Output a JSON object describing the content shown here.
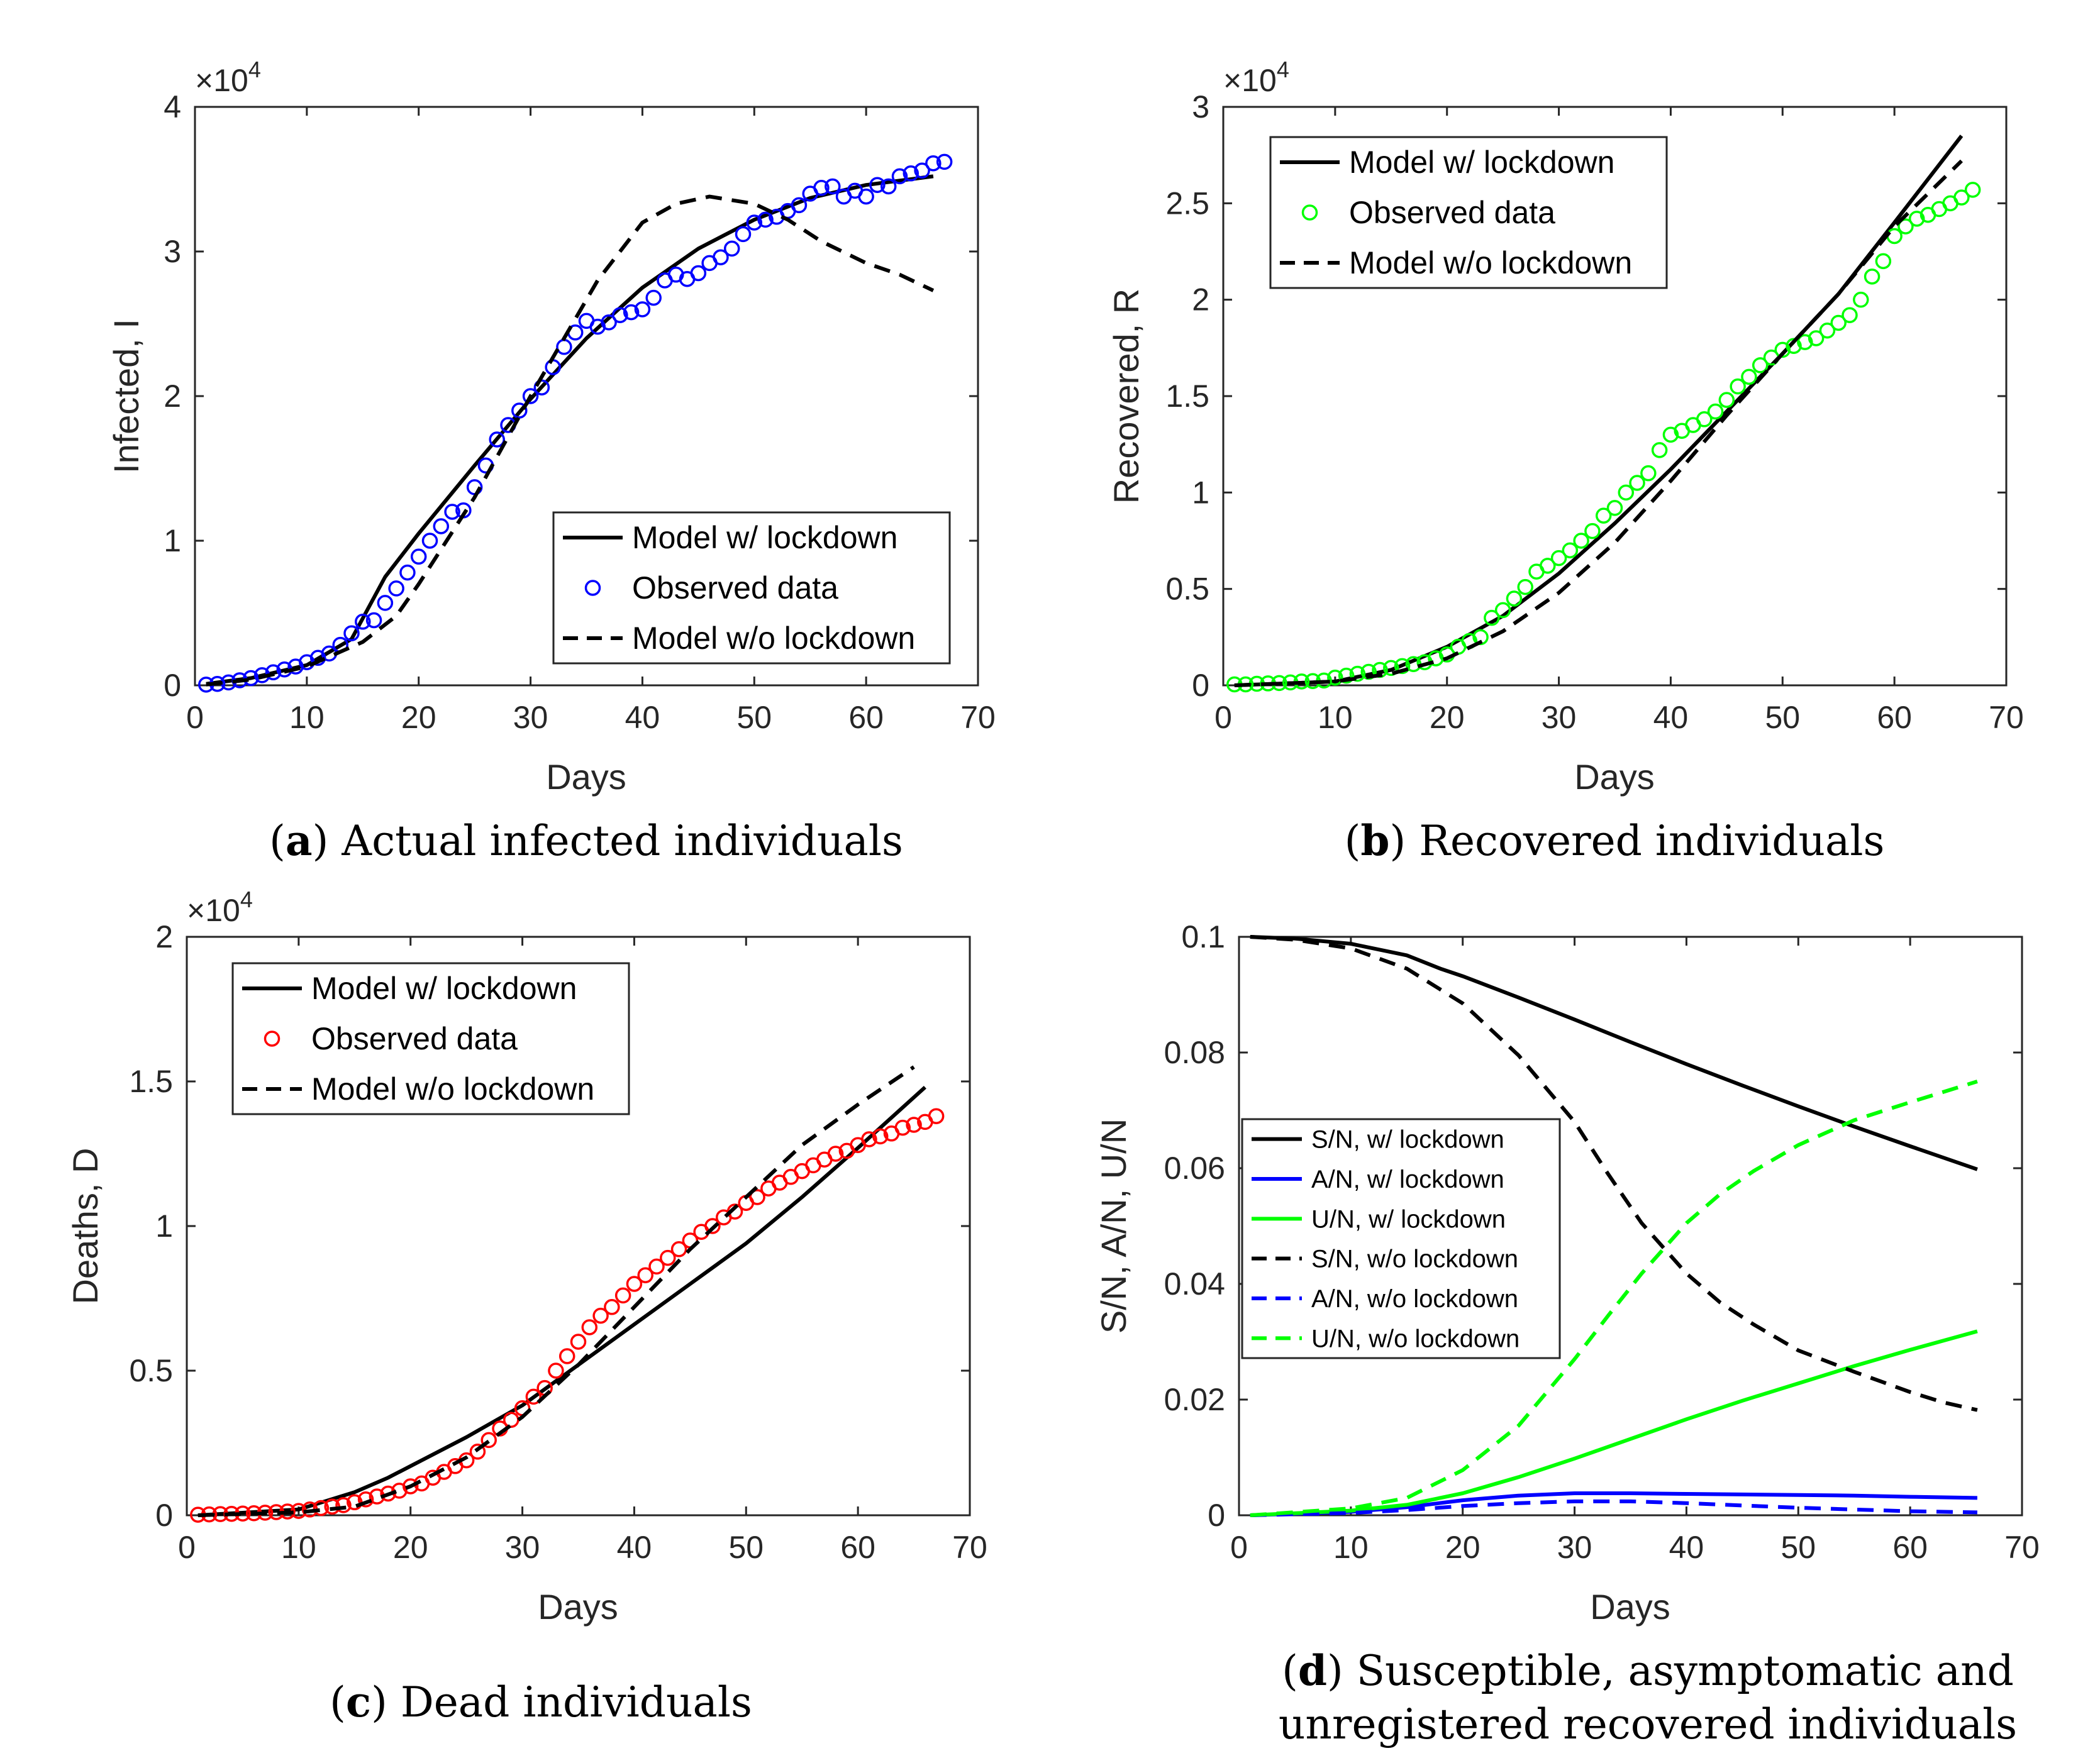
{
  "figure": {
    "panels": [
      {
        "id": "a",
        "caption_letter": "a",
        "caption_text": "Actual infected individuals",
        "exponent_base": "×10",
        "exponent_power": "4"
      },
      {
        "id": "b",
        "caption_letter": "b",
        "caption_text": "Recovered individuals",
        "exponent_base": "×10",
        "exponent_power": "4"
      },
      {
        "id": "c",
        "caption_letter": "c",
        "caption_text": "Dead individuals",
        "exponent_base": "×10",
        "exponent_power": "4"
      },
      {
        "id": "d",
        "caption_letter": "d",
        "caption_text": "Susceptible, asymptomatic and",
        "caption_text_line2": "unregistered recovered individuals",
        "exponent_base": "",
        "exponent_power": ""
      }
    ]
  },
  "colors": {
    "black": "#000000",
    "blue": "#0000ff",
    "green": "#00ff00",
    "red": "#ff0000",
    "axis": "#262626"
  },
  "chart_data": [
    {
      "type": "line",
      "panel": "a",
      "xlabel": "Days",
      "ylabel": "Infected, I",
      "xlim": [
        0,
        70
      ],
      "ylim": [
        0,
        4
      ],
      "xticks": [
        0,
        10,
        20,
        30,
        40,
        50,
        60,
        70
      ],
      "yticks": [
        0,
        1,
        2,
        3,
        4
      ],
      "ytick_labels": [
        "0",
        "1",
        "2",
        "3",
        "4"
      ],
      "y_scale_note": "×10^4",
      "legend_position": "bottom-right",
      "series": [
        {
          "name": "Model w/ lockdown",
          "style": "solid",
          "color": "black",
          "x": [
            1,
            5,
            10,
            14,
            17,
            20,
            25,
            30,
            35,
            40,
            45,
            50,
            55,
            60,
            66
          ],
          "y": [
            0.01,
            0.05,
            0.14,
            0.32,
            0.75,
            1.05,
            1.52,
            1.98,
            2.4,
            2.75,
            3.02,
            3.22,
            3.37,
            3.46,
            3.52
          ]
        },
        {
          "name": "Observed data",
          "style": "marker",
          "color": "blue",
          "x": [
            1,
            2,
            3,
            4,
            5,
            6,
            7,
            8,
            9,
            10,
            11,
            12,
            13,
            14,
            15,
            16,
            17,
            18,
            19,
            20,
            21,
            22,
            23,
            24,
            25,
            26,
            27,
            28,
            29,
            30,
            31,
            32,
            33,
            34,
            35,
            36,
            37,
            38,
            39,
            40,
            41,
            42,
            43,
            44,
            45,
            46,
            47,
            48,
            49,
            50,
            51,
            52,
            53,
            54,
            55,
            56,
            57,
            58,
            59,
            60,
            61,
            62,
            63,
            64,
            65,
            66,
            67
          ],
          "y": [
            0.005,
            0.01,
            0.02,
            0.035,
            0.05,
            0.07,
            0.09,
            0.11,
            0.13,
            0.16,
            0.19,
            0.22,
            0.28,
            0.36,
            0.44,
            0.45,
            0.57,
            0.67,
            0.78,
            0.89,
            1.0,
            1.1,
            1.2,
            1.21,
            1.37,
            1.52,
            1.7,
            1.8,
            1.9,
            2.0,
            2.06,
            2.2,
            2.34,
            2.44,
            2.52,
            2.48,
            2.51,
            2.56,
            2.58,
            2.6,
            2.68,
            2.8,
            2.84,
            2.81,
            2.85,
            2.92,
            2.96,
            3.02,
            3.12,
            3.2,
            3.22,
            3.24,
            3.28,
            3.32,
            3.4,
            3.44,
            3.45,
            3.38,
            3.42,
            3.38,
            3.46,
            3.45,
            3.52,
            3.54,
            3.56,
            3.61,
            3.62
          ]
        },
        {
          "name": "Model w/o lockdown",
          "style": "dashed",
          "color": "black",
          "x": [
            1,
            5,
            10,
            15,
            18,
            20,
            25,
            30,
            33,
            36,
            40,
            43,
            46,
            50,
            53,
            56,
            60,
            63,
            66
          ],
          "y": [
            0.005,
            0.04,
            0.13,
            0.3,
            0.48,
            0.7,
            1.3,
            2.0,
            2.4,
            2.8,
            3.2,
            3.33,
            3.38,
            3.33,
            3.22,
            3.07,
            2.92,
            2.84,
            2.73
          ]
        }
      ]
    },
    {
      "type": "line",
      "panel": "b",
      "xlabel": "Days",
      "ylabel": "Recovered, R",
      "xlim": [
        0,
        70
      ],
      "ylim": [
        0,
        3
      ],
      "xticks": [
        0,
        10,
        20,
        30,
        40,
        50,
        60,
        70
      ],
      "yticks": [
        0,
        0.5,
        1,
        1.5,
        2,
        2.5,
        3
      ],
      "ytick_labels": [
        "0",
        "0.5",
        "1",
        "1.5",
        "2",
        "2.5",
        "3"
      ],
      "y_scale_note": "×10^4",
      "legend_position": "top-left",
      "series": [
        {
          "name": "Model w/ lockdown",
          "style": "solid",
          "color": "black",
          "x": [
            1,
            10,
            15,
            20,
            25,
            30,
            35,
            40,
            45,
            50,
            55,
            60,
            66
          ],
          "y": [
            0,
            0.02,
            0.08,
            0.2,
            0.36,
            0.58,
            0.84,
            1.12,
            1.42,
            1.72,
            2.03,
            2.4,
            2.85
          ]
        },
        {
          "name": "Observed data",
          "style": "marker",
          "color": "green",
          "x": [
            1,
            2,
            3,
            4,
            5,
            6,
            7,
            8,
            9,
            10,
            11,
            12,
            13,
            14,
            15,
            16,
            17,
            18,
            19,
            20,
            21,
            22,
            23,
            24,
            25,
            26,
            27,
            28,
            29,
            30,
            31,
            32,
            33,
            34,
            35,
            36,
            37,
            38,
            39,
            40,
            41,
            42,
            43,
            44,
            45,
            46,
            47,
            48,
            49,
            50,
            51,
            52,
            53,
            54,
            55,
            56,
            57,
            58,
            59,
            60,
            61,
            62,
            63,
            64,
            65,
            66,
            67
          ],
          "y": [
            0.005,
            0.005,
            0.008,
            0.01,
            0.012,
            0.015,
            0.02,
            0.022,
            0.025,
            0.04,
            0.05,
            0.06,
            0.07,
            0.08,
            0.09,
            0.1,
            0.11,
            0.12,
            0.14,
            0.16,
            0.2,
            0.23,
            0.25,
            0.35,
            0.39,
            0.45,
            0.51,
            0.59,
            0.62,
            0.66,
            0.7,
            0.75,
            0.8,
            0.88,
            0.92,
            1.0,
            1.05,
            1.1,
            1.22,
            1.3,
            1.32,
            1.35,
            1.38,
            1.42,
            1.48,
            1.55,
            1.6,
            1.66,
            1.7,
            1.74,
            1.76,
            1.78,
            1.8,
            1.84,
            1.88,
            1.92,
            2.0,
            2.12,
            2.2,
            2.33,
            2.38,
            2.42,
            2.44,
            2.47,
            2.5,
            2.53,
            2.57
          ]
        },
        {
          "name": "Model w/o lockdown",
          "style": "dashed",
          "color": "black",
          "x": [
            1,
            10,
            15,
            20,
            25,
            30,
            35,
            40,
            45,
            50,
            55,
            60,
            66
          ],
          "y": [
            0,
            0.02,
            0.06,
            0.14,
            0.28,
            0.48,
            0.74,
            1.06,
            1.4,
            1.72,
            2.03,
            2.38,
            2.72
          ]
        }
      ]
    },
    {
      "type": "line",
      "panel": "c",
      "xlabel": "Days",
      "ylabel": "Deaths, D",
      "xlim": [
        0,
        70
      ],
      "ylim": [
        0,
        2
      ],
      "xticks": [
        0,
        10,
        20,
        30,
        40,
        50,
        60,
        70
      ],
      "yticks": [
        0,
        0.5,
        1,
        1.5,
        2
      ],
      "ytick_labels": [
        "0",
        "0.5",
        "1",
        "1.5",
        "2"
      ],
      "y_scale_note": "×10^4",
      "legend_position": "top-left",
      "series": [
        {
          "name": "Model w/ lockdown",
          "style": "solid",
          "color": "black",
          "x": [
            1,
            10,
            15,
            18,
            20,
            25,
            30,
            35,
            40,
            45,
            50,
            55,
            60,
            66
          ],
          "y": [
            0,
            0.02,
            0.08,
            0.13,
            0.17,
            0.27,
            0.38,
            0.52,
            0.66,
            0.8,
            0.94,
            1.1,
            1.27,
            1.48
          ]
        },
        {
          "name": "Observed data",
          "style": "marker",
          "color": "red",
          "x": [
            1,
            2,
            3,
            4,
            5,
            6,
            7,
            8,
            9,
            10,
            11,
            12,
            13,
            14,
            15,
            16,
            17,
            18,
            19,
            20,
            21,
            22,
            23,
            24,
            25,
            26,
            27,
            28,
            29,
            30,
            31,
            32,
            33,
            34,
            35,
            36,
            37,
            38,
            39,
            40,
            41,
            42,
            43,
            44,
            45,
            46,
            47,
            48,
            49,
            50,
            51,
            52,
            53,
            54,
            55,
            56,
            57,
            58,
            59,
            60,
            61,
            62,
            63,
            64,
            65,
            66,
            67
          ],
          "y": [
            0.002,
            0.003,
            0.004,
            0.005,
            0.006,
            0.007,
            0.009,
            0.011,
            0.013,
            0.015,
            0.02,
            0.025,
            0.03,
            0.035,
            0.045,
            0.055,
            0.065,
            0.075,
            0.085,
            0.1,
            0.11,
            0.13,
            0.15,
            0.17,
            0.19,
            0.22,
            0.26,
            0.3,
            0.33,
            0.37,
            0.41,
            0.44,
            0.5,
            0.55,
            0.6,
            0.65,
            0.69,
            0.72,
            0.76,
            0.8,
            0.83,
            0.86,
            0.89,
            0.92,
            0.95,
            0.98,
            1.0,
            1.03,
            1.05,
            1.08,
            1.1,
            1.13,
            1.15,
            1.17,
            1.19,
            1.21,
            1.23,
            1.25,
            1.26,
            1.28,
            1.3,
            1.31,
            1.32,
            1.34,
            1.35,
            1.36,
            1.38
          ]
        },
        {
          "name": "Model w/o lockdown",
          "style": "dashed",
          "color": "black",
          "x": [
            1,
            10,
            15,
            20,
            25,
            30,
            35,
            40,
            45,
            50,
            55,
            60,
            65
          ],
          "y": [
            0,
            0.01,
            0.03,
            0.1,
            0.2,
            0.34,
            0.52,
            0.72,
            0.92,
            1.1,
            1.28,
            1.42,
            1.55
          ]
        }
      ]
    },
    {
      "type": "line",
      "panel": "d",
      "xlabel": "Days",
      "ylabel": "S/N, A/N, U/N",
      "xlim": [
        0,
        70
      ],
      "ylim": [
        0,
        0.1
      ],
      "xticks": [
        0,
        10,
        20,
        30,
        40,
        50,
        60,
        70
      ],
      "yticks": [
        0,
        0.02,
        0.04,
        0.06,
        0.08,
        0.1
      ],
      "ytick_labels": [
        "0",
        "0.02",
        "0.04",
        "0.06",
        "0.08",
        "0.1"
      ],
      "legend_position": "middle-left",
      "series": [
        {
          "name": "S/N, w/ lockdown",
          "style": "solid",
          "color": "black",
          "x": [
            1,
            5,
            10,
            15,
            18,
            20,
            25,
            30,
            35,
            40,
            45,
            50,
            55,
            60,
            66
          ],
          "y": [
            0.1,
            0.0997,
            0.0988,
            0.0968,
            0.0945,
            0.0932,
            0.0895,
            0.0857,
            0.0818,
            0.078,
            0.0743,
            0.0707,
            0.0672,
            0.0638,
            0.0598
          ]
        },
        {
          "name": "A/N, w/ lockdown",
          "style": "solid",
          "color": "blue",
          "x": [
            1,
            10,
            15,
            20,
            25,
            30,
            35,
            40,
            45,
            50,
            55,
            60,
            66
          ],
          "y": [
            0,
            0.0006,
            0.0014,
            0.0026,
            0.0034,
            0.0038,
            0.0038,
            0.0037,
            0.0036,
            0.0035,
            0.0034,
            0.0032,
            0.003
          ]
        },
        {
          "name": "U/N, w/ lockdown",
          "style": "solid",
          "color": "green",
          "x": [
            1,
            10,
            15,
            20,
            25,
            30,
            35,
            40,
            45,
            50,
            55,
            60,
            66
          ],
          "y": [
            0,
            0.0008,
            0.0018,
            0.0038,
            0.0066,
            0.0098,
            0.0132,
            0.0166,
            0.0198,
            0.0228,
            0.0258,
            0.0286,
            0.0318
          ]
        },
        {
          "name": "S/N, w/o lockdown",
          "style": "dashed",
          "color": "black",
          "x": [
            1,
            5,
            10,
            15,
            20,
            25,
            30,
            33,
            36,
            40,
            43,
            46,
            50,
            55,
            60,
            63,
            66
          ],
          "y": [
            0.1,
            0.0995,
            0.098,
            0.0945,
            0.0885,
            0.0795,
            0.068,
            0.059,
            0.0505,
            0.0418,
            0.0368,
            0.033,
            0.0285,
            0.0248,
            0.0213,
            0.0195,
            0.0182
          ]
        },
        {
          "name": "A/N, w/o lockdown",
          "style": "dashed",
          "color": "blue",
          "x": [
            1,
            10,
            15,
            20,
            25,
            30,
            35,
            40,
            45,
            50,
            55,
            60,
            66
          ],
          "y": [
            0,
            0.0004,
            0.0009,
            0.0016,
            0.0021,
            0.0024,
            0.0024,
            0.0021,
            0.0017,
            0.0013,
            0.001,
            0.0007,
            0.0005
          ]
        },
        {
          "name": "U/N, w/o lockdown",
          "style": "dashed",
          "color": "green",
          "x": [
            1,
            10,
            15,
            20,
            25,
            30,
            33,
            36,
            40,
            43,
            46,
            50,
            55,
            60,
            66
          ],
          "y": [
            0,
            0.0012,
            0.003,
            0.0078,
            0.0155,
            0.027,
            0.0345,
            0.0418,
            0.0505,
            0.0555,
            0.0595,
            0.064,
            0.0683,
            0.0714,
            0.075
          ]
        }
      ]
    }
  ]
}
